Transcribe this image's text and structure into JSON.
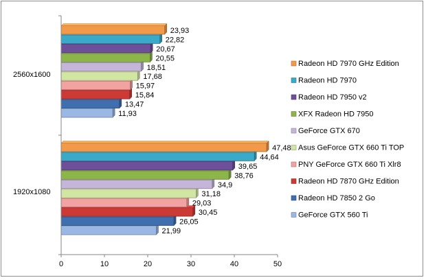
{
  "chart_data": {
    "type": "bar",
    "orientation": "horizontal",
    "title": "",
    "xlabel": "",
    "ylabel": "",
    "xlim": [
      0,
      50
    ],
    "x_ticks": [
      "0",
      "10",
      "20",
      "30",
      "40",
      "50"
    ],
    "grid": false,
    "legend_position": "right",
    "categories": [
      "1920x1080",
      "2560x1600"
    ],
    "series": [
      {
        "name": "GeForce GTX 560 Ti",
        "color": "#9bb7e4",
        "values": [
          21.99,
          11.93
        ],
        "labels": [
          "21,99",
          "11,93"
        ]
      },
      {
        "name": "Radeon HD 7850 2 Go",
        "color": "#3f6fae",
        "values": [
          26.05,
          13.47
        ],
        "labels": [
          "26,05",
          "13,47"
        ]
      },
      {
        "name": "Radeon HD 7870 GHz Edition",
        "color": "#cb3a35",
        "values": [
          30.45,
          15.84
        ],
        "labels": [
          "30,45",
          "15,84"
        ]
      },
      {
        "name": "PNY GeForce GTX 660 Ti Xlr8",
        "color": "#f2a2a0",
        "values": [
          29.03,
          15.97
        ],
        "labels": [
          "29,03",
          "15,97"
        ]
      },
      {
        "name": "Asus GeForce GTX 660 Ti TOP",
        "color": "#d2e6a4",
        "values": [
          31.18,
          17.68
        ],
        "labels": [
          "31,18",
          "17,68"
        ]
      },
      {
        "name": "GeForce GTX 670",
        "color": "#c5b6d9",
        "values": [
          34.9,
          18.51
        ],
        "labels": [
          "34,9",
          "18,51"
        ]
      },
      {
        "name": "XFX Radeon HD 7950",
        "color": "#8cb54a",
        "values": [
          38.76,
          20.55
        ],
        "labels": [
          "38,76",
          "20,55"
        ]
      },
      {
        "name": "Radeon HD  7950 v2",
        "color": "#6e4f9a",
        "values": [
          39.65,
          20.67
        ],
        "labels": [
          "39,65",
          "20,67"
        ]
      },
      {
        "name": "Radeon HD 7970",
        "color": "#3aaac8",
        "values": [
          44.64,
          22.82
        ],
        "labels": [
          "44,64",
          "22,82"
        ]
      },
      {
        "name": "Radeon HD 7970 GHz Edition",
        "color": "#f29a4a",
        "values": [
          47.48,
          23.93
        ],
        "labels": [
          "47,48",
          "23,93"
        ]
      }
    ]
  }
}
